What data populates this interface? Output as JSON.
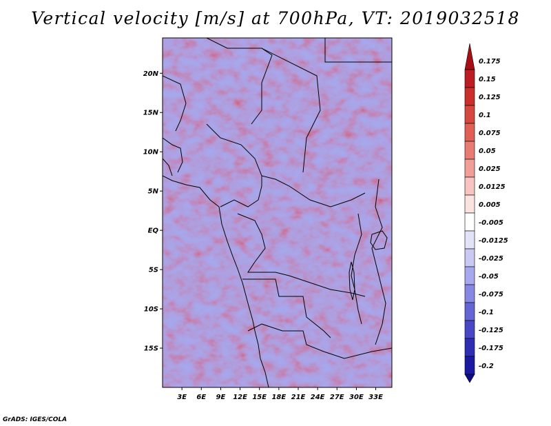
{
  "title": "Vertical velocity [m/s] at 700hPa, VT: 2019032518",
  "credit": "GrADS: IGES/COLA",
  "map": {
    "lon_range": [
      0,
      35.5
    ],
    "lat_range": [
      -20,
      24.5
    ],
    "lat_labels": [
      {
        "text": "20N",
        "lat": 20
      },
      {
        "text": "15N",
        "lat": 15
      },
      {
        "text": "10N",
        "lat": 10
      },
      {
        "text": "5N",
        "lat": 5
      },
      {
        "text": "EQ",
        "lat": 0
      },
      {
        "text": "5S",
        "lat": -5
      },
      {
        "text": "10S",
        "lat": -10
      },
      {
        "text": "15S",
        "lat": -15
      }
    ],
    "lon_labels": [
      {
        "text": "3E",
        "lon": 3
      },
      {
        "text": "6E",
        "lon": 6
      },
      {
        "text": "9E",
        "lon": 9
      },
      {
        "text": "12E",
        "lon": 12
      },
      {
        "text": "15E",
        "lon": 15
      },
      {
        "text": "18E",
        "lon": 18
      },
      {
        "text": "21E",
        "lon": 21
      },
      {
        "text": "24E",
        "lon": 24
      },
      {
        "text": "27E",
        "lon": 27
      },
      {
        "text": "30E",
        "lon": 30
      },
      {
        "text": "33E",
        "lon": 33
      }
    ]
  },
  "colorbar": {
    "labels": [
      "0.175",
      "0.15",
      "0.125",
      "0.1",
      "0.075",
      "0.05",
      "0.025",
      "0.0125",
      "0.005",
      "-0.005",
      "-0.0125",
      "-0.025",
      "-0.05",
      "-0.075",
      "-0.1",
      "-0.125",
      "-0.175",
      "-0.2"
    ],
    "colors": [
      "#a50f15",
      "#bd1c22",
      "#cb2f2c",
      "#d6473f",
      "#e06058",
      "#e87c73",
      "#f09e96",
      "#f7c4bf",
      "#fbe3e0",
      "#ffffff",
      "#e3e3f8",
      "#c9c9f4",
      "#a8a8ee",
      "#8787e4",
      "#6565d6",
      "#4848c6",
      "#2e2eb4",
      "#1a1aa0",
      "#0c0c84"
    ]
  }
}
